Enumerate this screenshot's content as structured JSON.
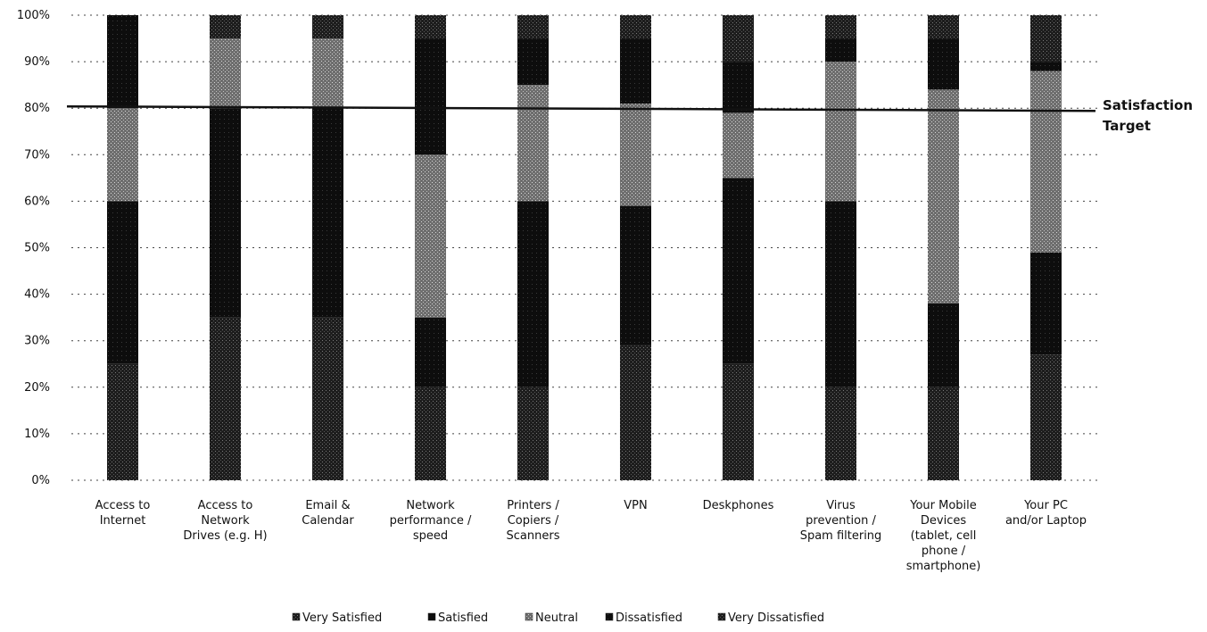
{
  "chart_data": {
    "type": "bar",
    "stacked": true,
    "percent_stacked": true,
    "categories": [
      [
        "Access to",
        "Internet"
      ],
      [
        "Access to",
        "Network",
        "Drives (e.g. H)"
      ],
      [
        "Email &",
        "Calendar"
      ],
      [
        "Network",
        "performance /",
        "speed"
      ],
      [
        "Printers /",
        "Copiers /",
        "Scanners"
      ],
      [
        "VPN"
      ],
      [
        "Deskphones"
      ],
      [
        "Virus",
        "prevention /",
        "Spam filtering"
      ],
      [
        "Your Mobile",
        "Devices",
        "(tablet, cell",
        "phone /",
        "smartphone)"
      ],
      [
        "Your PC",
        "and/or Laptop"
      ]
    ],
    "series": [
      {
        "name": "Very Satisfied",
        "color": "#2a2a2a",
        "values": [
          25,
          35,
          35,
          20,
          20,
          29,
          25,
          20,
          20,
          27
        ]
      },
      {
        "name": "Satisfied",
        "color": "#0c0c0c",
        "values": [
          35,
          45,
          45,
          15,
          40,
          30,
          40,
          40,
          18,
          22
        ]
      },
      {
        "name": "Neutral",
        "color": "#8a8a8a",
        "values": [
          20,
          15,
          15,
          35,
          25,
          22,
          14,
          30,
          46,
          39
        ]
      },
      {
        "name": "Dissatisfied",
        "color": "#1a1a1a",
        "values": [
          20,
          0,
          0,
          25,
          10,
          14,
          11,
          5,
          11,
          2
        ]
      },
      {
        "name": "Very Dissatisfied",
        "color": "#444444",
        "values": [
          0,
          5,
          5,
          5,
          5,
          5,
          10,
          5,
          5,
          10
        ]
      }
    ],
    "yticks": [
      "0%",
      "10%",
      "20%",
      "30%",
      "40%",
      "50%",
      "60%",
      "70%",
      "80%",
      "90%",
      "100%"
    ],
    "ylim": [
      0,
      100
    ],
    "grid": true,
    "target": {
      "value": 80,
      "label": [
        "Satisfaction",
        "Target"
      ]
    },
    "legend_position": "bottom"
  }
}
